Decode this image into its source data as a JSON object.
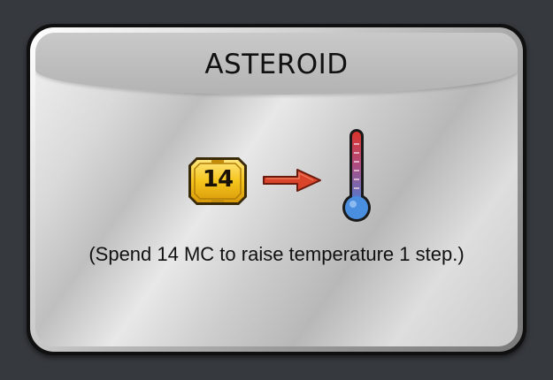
{
  "card": {
    "title": "ASTEROID",
    "cost": {
      "icon": "megacredit-icon",
      "value": "14",
      "color": "#f2c21a"
    },
    "arrow": {
      "icon": "arrow-right-icon",
      "color": "#d9442a"
    },
    "result": {
      "icon": "thermometer-icon"
    },
    "description": "(Spend 14 MC to raise temperature 1 step.)"
  }
}
